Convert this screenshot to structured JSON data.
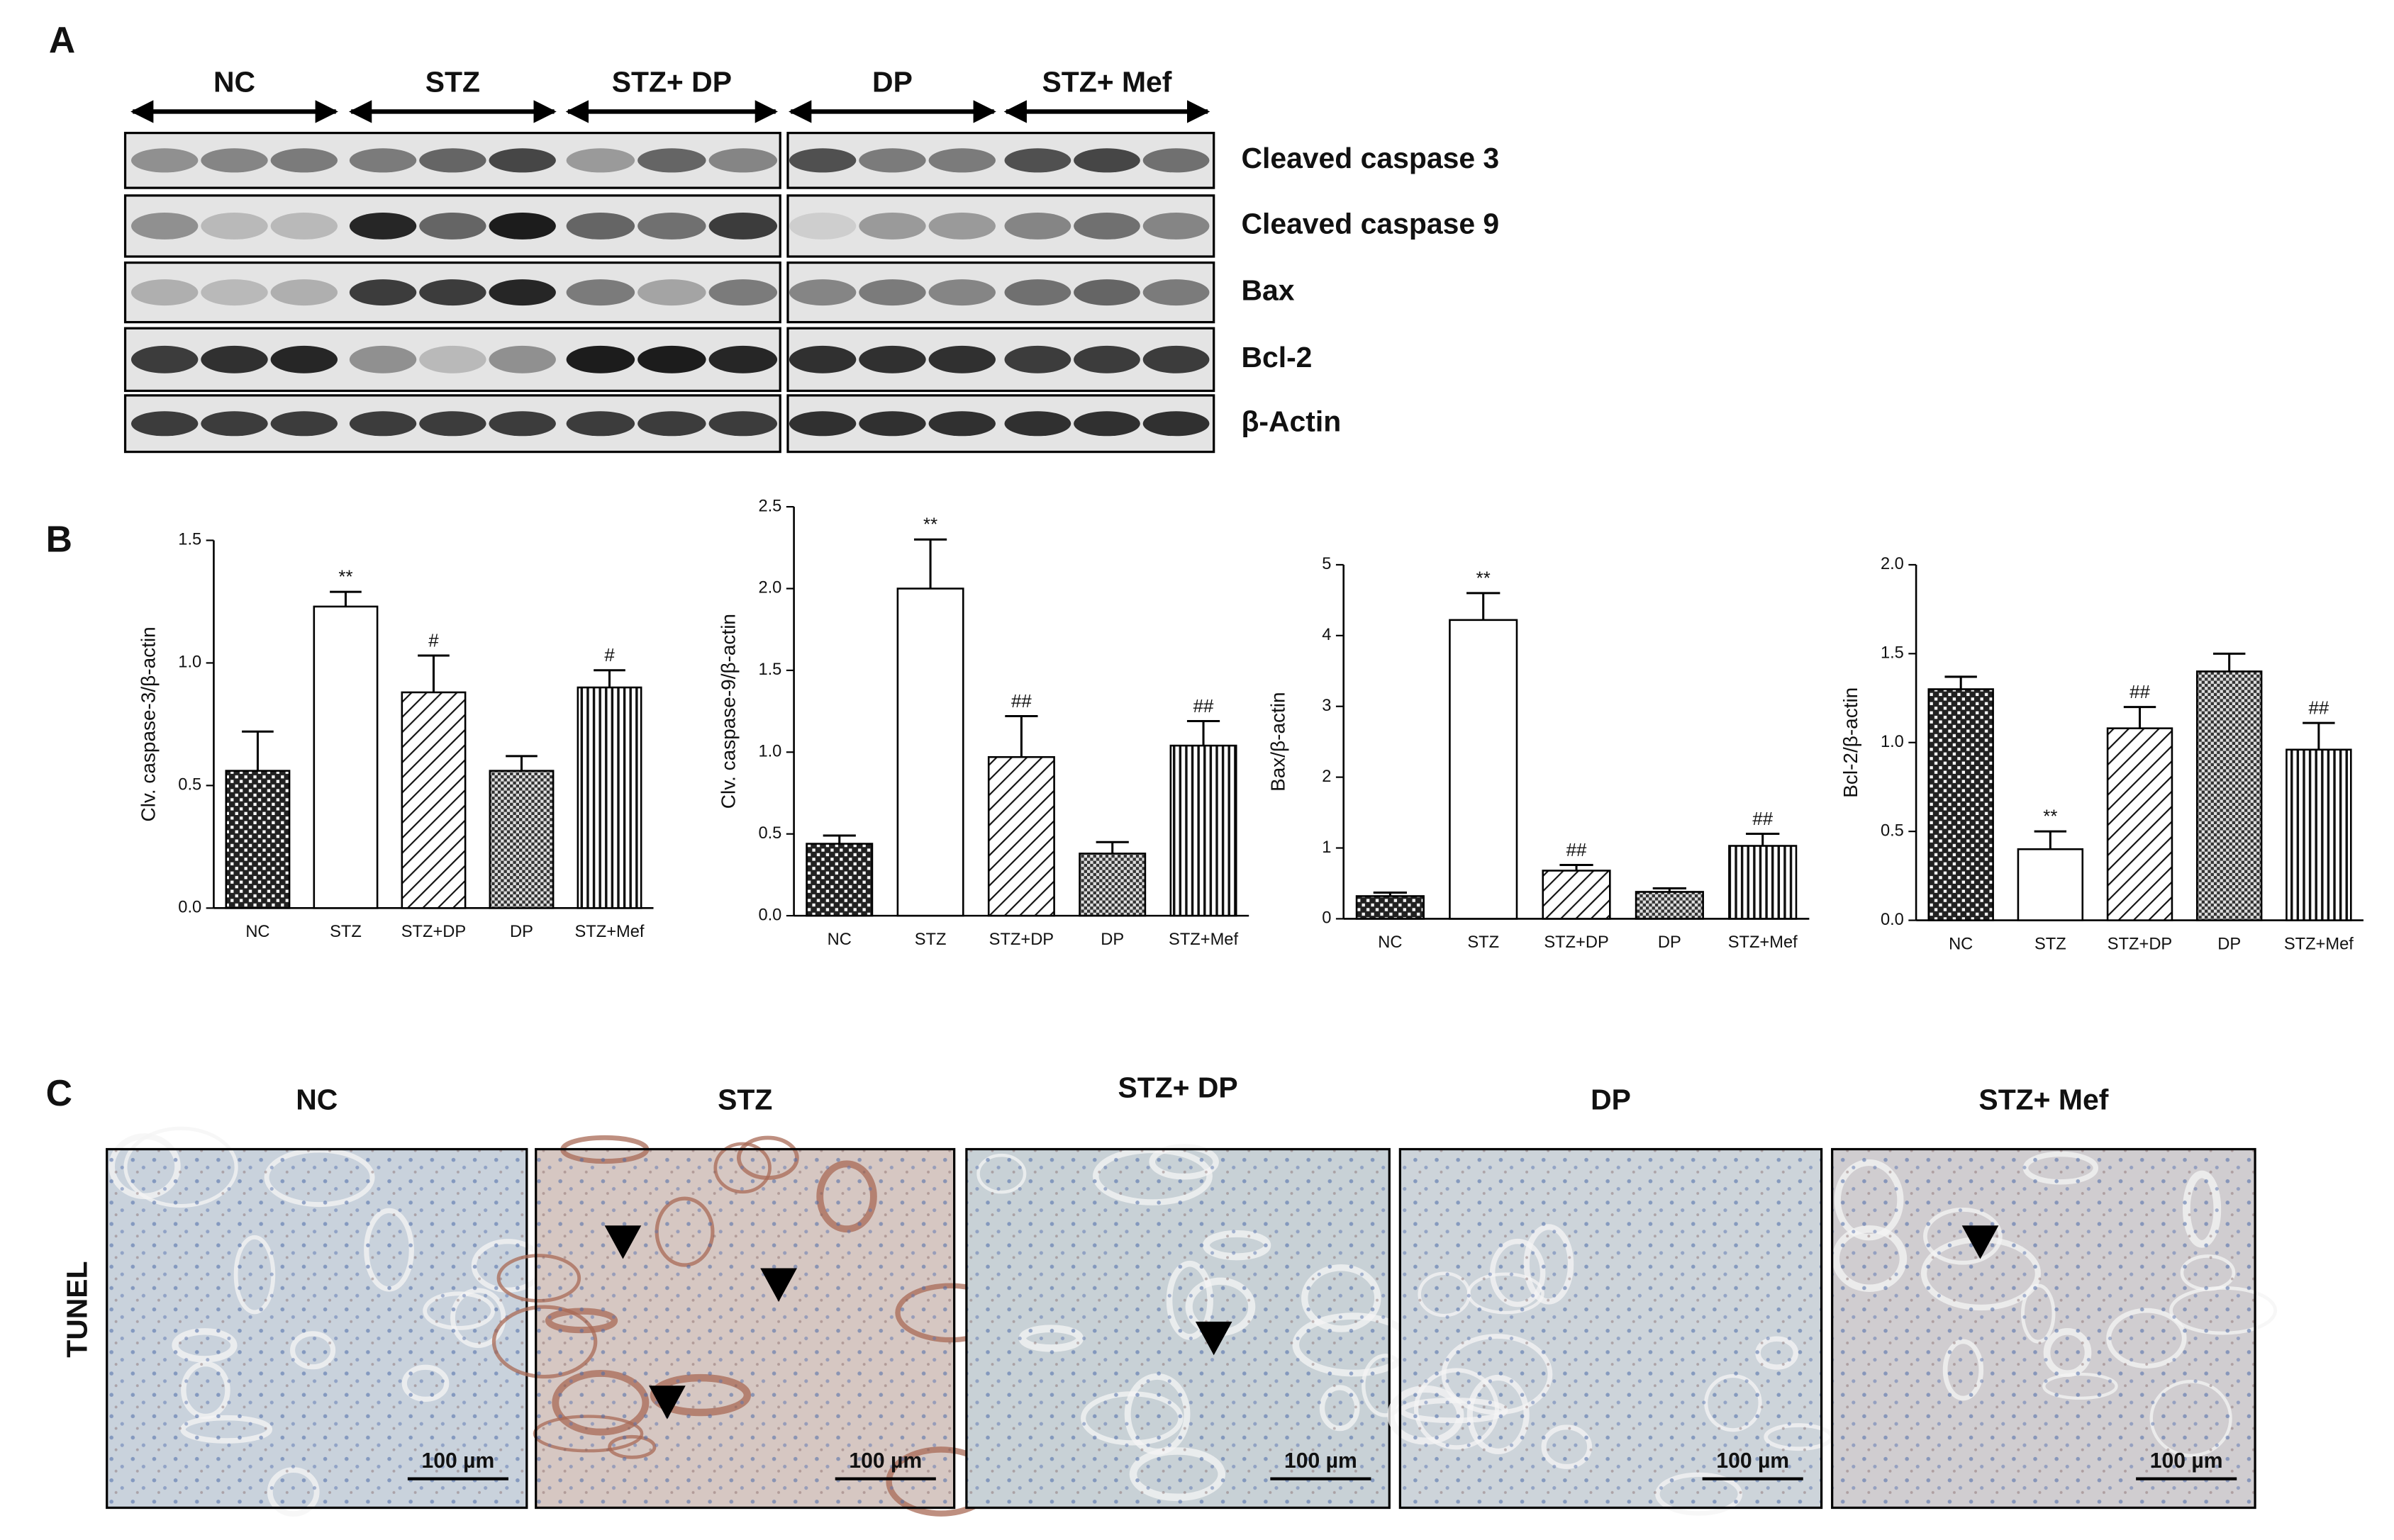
{
  "panel_labels": [
    "A",
    "B",
    "C"
  ],
  "blot": {
    "groups": [
      "NC",
      "STZ",
      "STZ+ DP",
      "DP",
      "STZ+ Mef"
    ],
    "proteins": [
      "Cleaved caspase 3",
      "Cleaved caspase 9",
      "Bax",
      "Bcl-2",
      "β-Actin"
    ]
  },
  "chart_data": [
    {
      "type": "bar",
      "y_label": "Clv. caspase-3/β-actin",
      "categories": [
        "NC",
        "STZ",
        "STZ+DP",
        "DP",
        "STZ+Mef"
      ],
      "values": [
        0.56,
        1.23,
        0.88,
        0.56,
        0.9
      ],
      "errors": [
        0.16,
        0.06,
        0.15,
        0.06,
        0.07
      ],
      "annotations": [
        null,
        "**",
        "#",
        null,
        "#"
      ],
      "ylim": [
        0,
        1.5
      ],
      "yticks": [
        {
          "value": 0,
          "label": "0.0"
        },
        {
          "value": 0.5,
          "label": "0.5"
        },
        {
          "value": 1,
          "label": "1.0"
        },
        {
          "value": 1.5,
          "label": "1.5"
        }
      ]
    },
    {
      "type": "bar",
      "y_label": "Clv. caspase-9/β-actin",
      "categories": [
        "NC",
        "STZ",
        "STZ+DP",
        "DP",
        "STZ+Mef"
      ],
      "values": [
        0.44,
        2.0,
        0.97,
        0.38,
        1.04
      ],
      "errors": [
        0.05,
        0.3,
        0.25,
        0.07,
        0.15
      ],
      "annotations": [
        null,
        "**",
        "##",
        null,
        "##"
      ],
      "ylim": [
        0,
        2.5
      ],
      "yticks": [
        {
          "value": 0,
          "label": "0.0"
        },
        {
          "value": 0.5,
          "label": "0.5"
        },
        {
          "value": 1,
          "label": "1.0"
        },
        {
          "value": 1.5,
          "label": "1.5"
        },
        {
          "value": 2,
          "label": "2.0"
        },
        {
          "value": 2.5,
          "label": "2.5"
        }
      ]
    },
    {
      "type": "bar",
      "y_label": "Bax/β-actin",
      "categories": [
        "NC",
        "STZ",
        "STZ+DP",
        "DP",
        "STZ+Mef"
      ],
      "values": [
        0.32,
        4.22,
        0.68,
        0.38,
        1.03
      ],
      "errors": [
        0.05,
        0.38,
        0.08,
        0.05,
        0.17
      ],
      "annotations": [
        null,
        "**",
        "##",
        null,
        "##"
      ],
      "ylim": [
        0,
        5
      ],
      "yticks": [
        0,
        1,
        2,
        3,
        4,
        5
      ]
    },
    {
      "type": "bar",
      "y_label": "Bcl-2/β-actin",
      "categories": [
        "NC",
        "STZ",
        "STZ+DP",
        "DP",
        "STZ+Mef"
      ],
      "values": [
        1.3,
        0.4,
        1.08,
        1.4,
        0.96
      ],
      "errors": [
        0.07,
        0.1,
        0.12,
        0.1,
        0.15
      ],
      "annotations": [
        null,
        "**",
        "##",
        null,
        "##"
      ],
      "ylim": [
        0,
        2
      ],
      "yticks": [
        {
          "value": 0,
          "label": "0.0"
        },
        {
          "value": 0.5,
          "label": "0.5"
        },
        {
          "value": 1,
          "label": "1.0"
        },
        {
          "value": 1.5,
          "label": "1.5"
        },
        {
          "value": 2,
          "label": "2.0"
        }
      ]
    }
  ],
  "tunel": {
    "row_label": "TUNEL",
    "panels": [
      {
        "title": "NC",
        "scale_bar": "100 µm"
      },
      {
        "title": "STZ",
        "scale_bar": "100 µm"
      },
      {
        "title": "STZ+ DP",
        "scale_bar": "100 µm"
      },
      {
        "title": "DP",
        "scale_bar": "100 µm"
      },
      {
        "title": "STZ+ Mef",
        "scale_bar": "100 µm"
      }
    ]
  }
}
